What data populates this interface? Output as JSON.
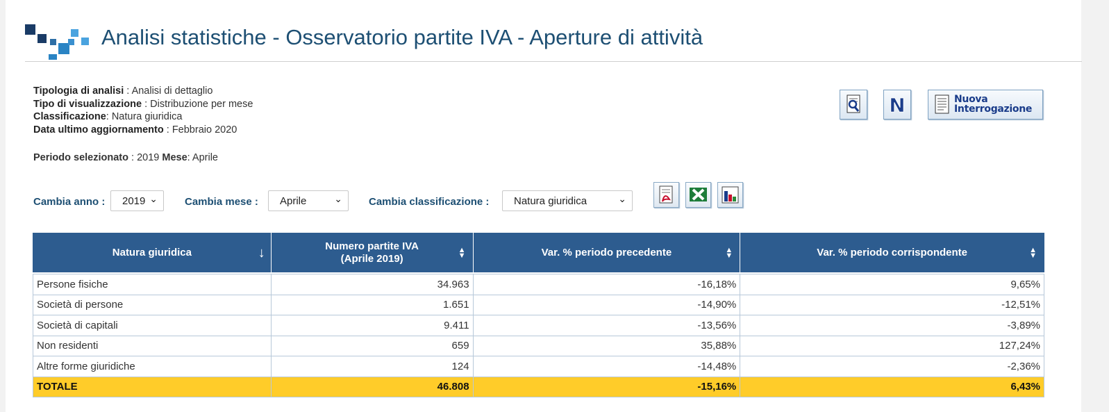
{
  "header": {
    "title": "Analisi statistiche - Osservatorio partite IVA - Aperture di attività"
  },
  "info": [
    {
      "label": "Tipologia di analisi",
      "sep": " : ",
      "value": "Analisi di dettaglio"
    },
    {
      "label": "Tipo di visualizzazione",
      "sep": " : ",
      "value": "Distribuzione per mese"
    },
    {
      "label": "Classificazione",
      "sep": ": ",
      "value": "Natura giuridica"
    },
    {
      "label": "Data ultimo aggiornamento",
      "sep": " : ",
      "value": "Febbraio 2020"
    }
  ],
  "period": {
    "label": "Periodo selezionato",
    "sep": " : ",
    "year": "2019",
    "month_label": "Mese",
    "month_sep": ": ",
    "month": "Aprile"
  },
  "toolbar": {
    "new_query_label": "Nuova\nInterrogazione"
  },
  "filters": {
    "year_label": "Cambia anno :",
    "year_value": "2019",
    "month_label": "Cambia mese :",
    "month_value": "Aprile",
    "class_label": "Cambia classificazione :",
    "class_value": "Natura giuridica"
  },
  "table": {
    "headers": [
      "Natura giuridica",
      "Numero partite IVA\n(Aprile 2019)",
      "Var. % periodo precedente",
      "Var. % periodo corrispondente"
    ],
    "rows": [
      [
        "Persone fisiche",
        "34.963",
        "-16,18%",
        "9,65%"
      ],
      [
        "Società di persone",
        "1.651",
        "-14,90%",
        "-12,51%"
      ],
      [
        "Società di capitali",
        "9.411",
        "-13,56%",
        "-3,89%"
      ],
      [
        "Non residenti",
        "659",
        "35,88%",
        "127,24%"
      ],
      [
        "Altre forme giuridiche",
        "124",
        "-14,48%",
        "-2,36%"
      ]
    ],
    "total": [
      "TOTALE",
      "46.808",
      "-15,16%",
      "6,43%"
    ]
  },
  "colors": {
    "header_bg": "#2d5c8f",
    "total_bg": "#ffcc29",
    "title": "#1d4f73"
  },
  "icons": [
    "logo-squares",
    "search-document-icon",
    "n-icon",
    "document-icon",
    "pdf-icon",
    "excel-icon",
    "bar-chart-icon"
  ]
}
